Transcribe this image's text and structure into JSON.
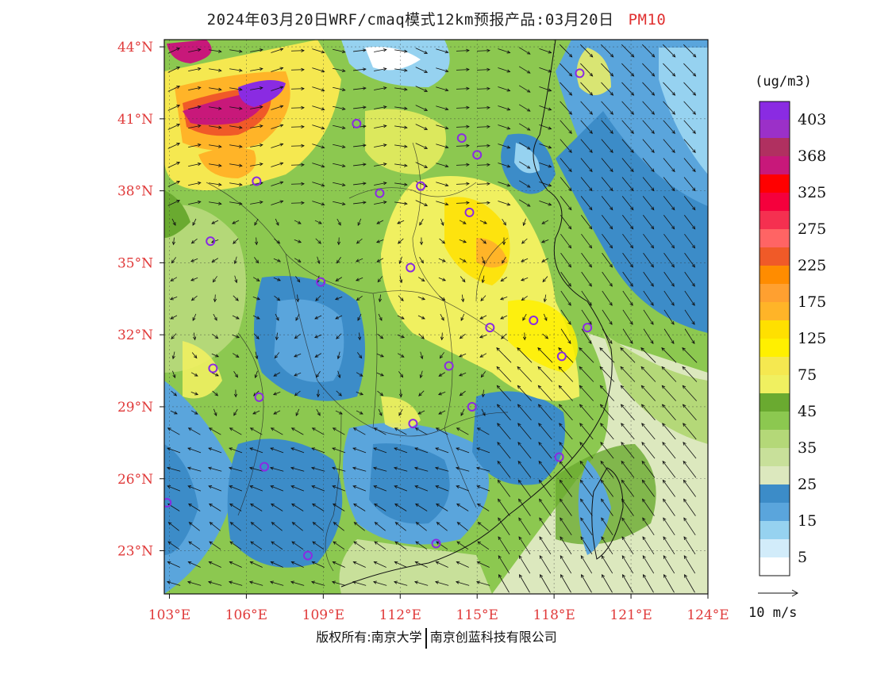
{
  "title": {
    "main": "2024年03月20日WRF/cmaq模式12km预报产品:03月20日",
    "pollutant": "PM10"
  },
  "map": {
    "lon_min": 102.8,
    "lon_max": 124.0,
    "lat_min": 21.2,
    "lat_max": 44.3,
    "lon_ticks": [
      {
        "value": 103,
        "label": "103°E"
      },
      {
        "value": 106,
        "label": "106°E"
      },
      {
        "value": 109,
        "label": "109°E"
      },
      {
        "value": 112,
        "label": "112°E"
      },
      {
        "value": 115,
        "label": "115°E"
      },
      {
        "value": 118,
        "label": "118°E"
      },
      {
        "value": 121,
        "label": "121°E"
      },
      {
        "value": 124,
        "label": "124°E"
      }
    ],
    "lat_ticks": [
      {
        "value": 44,
        "label": "44°N"
      },
      {
        "value": 41,
        "label": "41°N"
      },
      {
        "value": 38,
        "label": "38°N"
      },
      {
        "value": 35,
        "label": "35°N"
      },
      {
        "value": 32,
        "label": "32°N"
      },
      {
        "value": 29,
        "label": "29°N"
      },
      {
        "value": 26,
        "label": "26°N"
      },
      {
        "value": 23,
        "label": "23°N"
      }
    ],
    "tick_color": "#e03a3a",
    "city_marker_color": "#8a2be2",
    "cities": [
      {
        "lon": 119.0,
        "lat": 42.9
      },
      {
        "lon": 110.3,
        "lat": 40.8
      },
      {
        "lon": 114.4,
        "lat": 40.2
      },
      {
        "lon": 115.0,
        "lat": 39.5
      },
      {
        "lon": 106.4,
        "lat": 38.4
      },
      {
        "lon": 111.2,
        "lat": 37.9
      },
      {
        "lon": 112.8,
        "lat": 38.2
      },
      {
        "lon": 114.7,
        "lat": 37.1
      },
      {
        "lon": 104.6,
        "lat": 35.9
      },
      {
        "lon": 112.4,
        "lat": 34.8
      },
      {
        "lon": 108.9,
        "lat": 34.2
      },
      {
        "lon": 115.5,
        "lat": 32.3
      },
      {
        "lon": 117.2,
        "lat": 32.6
      },
      {
        "lon": 119.3,
        "lat": 32.3
      },
      {
        "lon": 118.3,
        "lat": 31.1
      },
      {
        "lon": 104.7,
        "lat": 30.6
      },
      {
        "lon": 113.9,
        "lat": 30.7
      },
      {
        "lon": 106.5,
        "lat": 29.4
      },
      {
        "lon": 114.8,
        "lat": 29.0
      },
      {
        "lon": 112.5,
        "lat": 28.3
      },
      {
        "lon": 118.2,
        "lat": 26.9
      },
      {
        "lon": 106.7,
        "lat": 26.5
      },
      {
        "lon": 102.9,
        "lat": 25.0
      },
      {
        "lon": 113.4,
        "lat": 23.3
      },
      {
        "lon": 108.4,
        "lat": 22.8
      }
    ],
    "wind_scale_label": "10 m/s"
  },
  "legend": {
    "unit": "(ug/m3)",
    "bins": [
      {
        "color": "#8a2be2",
        "label": "403"
      },
      {
        "color": "#9b30c8",
        "label": ""
      },
      {
        "color": "#b03060",
        "label": "368"
      },
      {
        "color": "#c8187a",
        "label": ""
      },
      {
        "color": "#ff0000",
        "label": "325"
      },
      {
        "color": "#f5003c",
        "label": ""
      },
      {
        "color": "#f53050",
        "label": "275"
      },
      {
        "color": "#ff6464",
        "label": ""
      },
      {
        "color": "#f05a28",
        "label": "225"
      },
      {
        "color": "#ff8c00",
        "label": ""
      },
      {
        "color": "#ffa030",
        "label": "175"
      },
      {
        "color": "#ffb428",
        "label": ""
      },
      {
        "color": "#ffe000",
        "label": "125"
      },
      {
        "color": "#fff000",
        "label": ""
      },
      {
        "color": "#f5e850",
        "label": "75"
      },
      {
        "color": "#f0f060",
        "label": ""
      },
      {
        "color": "#6aaa30",
        "label": "45"
      },
      {
        "color": "#8cc850",
        "label": ""
      },
      {
        "color": "#b4d878",
        "label": "35"
      },
      {
        "color": "#c8e09a",
        "label": ""
      },
      {
        "color": "#dce8be",
        "label": "25"
      },
      {
        "color": "#3c8cc8",
        "label": ""
      },
      {
        "color": "#5aa5dc",
        "label": "15"
      },
      {
        "color": "#96d2f0",
        "label": ""
      },
      {
        "color": "#d2ecfa",
        "label": "5"
      },
      {
        "color": "#ffffff",
        "label": ""
      }
    ]
  },
  "footer": {
    "left": "版权所有:南京大学",
    "right": "南京创蓝科技有限公司"
  }
}
